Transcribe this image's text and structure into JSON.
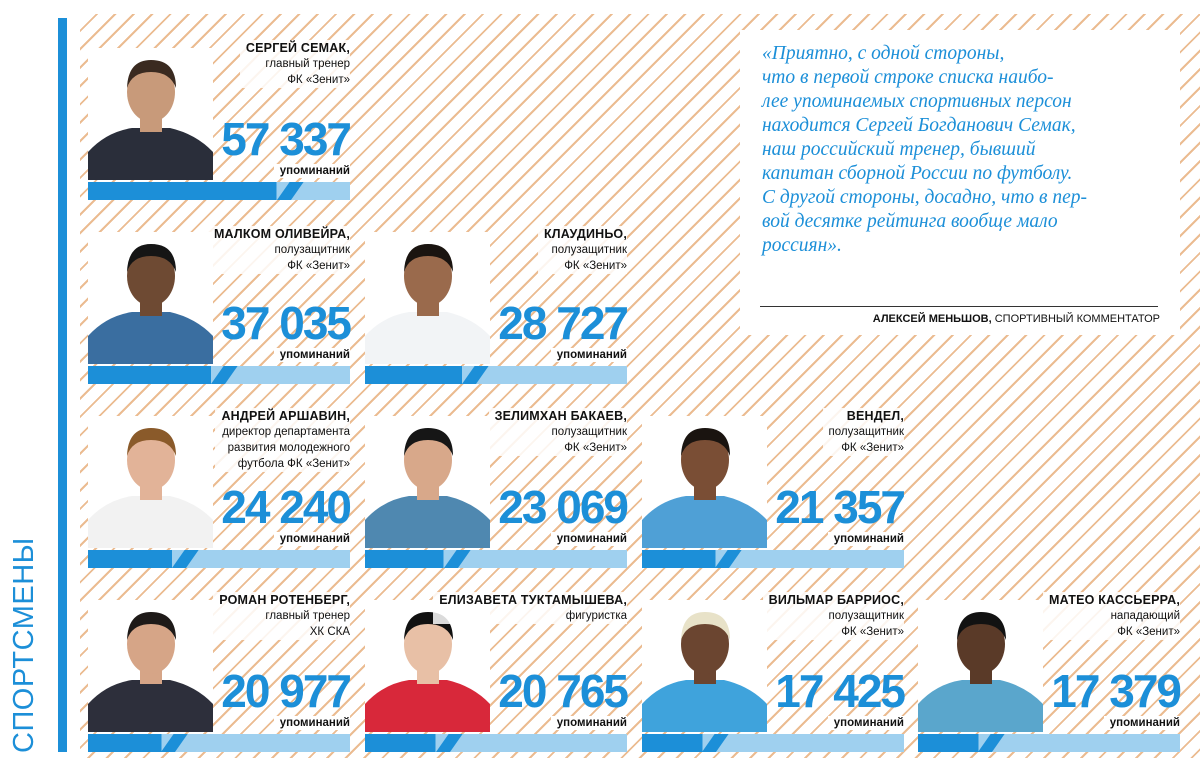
{
  "side_label": "СПОРТСМЕНЫ",
  "mentions_label": "упоминаний",
  "quote": {
    "text": "«Приятно, с одной стороны,\nчто в первой строке списка наибо-\nлее упоминаемых спортивных персон\nнаходится Сергей Богданович Семак,\nнаш российский тренер, бывший\nкапитан сборной России по футболу.\nС другой стороны, досадно, что в пер-\nвой десятке рейтинга вообще мало\nроссиян».",
    "author_name": "АЛЕКСЕЙ МЕНЬШОВ,",
    "author_role": "СПОРТИВНЫЙ КОММЕНТАТОР"
  },
  "colors": {
    "accent": "#1c8fd8",
    "accent_light": "#9fd0ef",
    "hatch": "#e9b485"
  },
  "people": [
    {
      "name": "СЕРГЕЙ СЕМАК,",
      "role_lines": [
        "главный тренер",
        "ФК «Зенит»"
      ],
      "mentions": "57 337",
      "value": 57337
    },
    {
      "name": "МАЛКОМ ОЛИВЕЙРА,",
      "role_lines": [
        "полузащитник",
        "ФК «Зенит»"
      ],
      "mentions": "37 035",
      "value": 37035
    },
    {
      "name": "КЛАУДИНЬО,",
      "role_lines": [
        "полузащитник",
        "ФК «Зенит»"
      ],
      "mentions": "28 727",
      "value": 28727
    },
    {
      "name": "АНДРЕЙ АРШАВИН,",
      "role_lines": [
        "директор департамента",
        "развития молодежного",
        "футбола ФК «Зенит»"
      ],
      "mentions": "24 240",
      "value": 24240
    },
    {
      "name": "ЗЕЛИМХАН БАКАЕВ,",
      "role_lines": [
        "полузащитник",
        "ФК «Зенит»"
      ],
      "mentions": "23 069",
      "value": 23069
    },
    {
      "name": "ВЕНДЕЛ,",
      "role_lines": [
        "полузащитник",
        "ФК «Зенит»"
      ],
      "mentions": "21 357",
      "value": 21357
    },
    {
      "name": "РОМАН РОТЕНБЕРГ,",
      "role_lines": [
        "главный тренер",
        "ХК СКА"
      ],
      "mentions": "20 977",
      "value": 20977
    },
    {
      "name": "ЕЛИЗАВЕТА ТУКТАМЫШЕВА,",
      "role_lines": [
        "фигуристка"
      ],
      "mentions": "20 765",
      "value": 20765
    },
    {
      "name": "ВИЛЬМАР БАРРИОС,",
      "role_lines": [
        "полузащитник",
        "ФК «Зенит»"
      ],
      "mentions": "17 425",
      "value": 17425
    },
    {
      "name": "МАТЕО КАССЬЕРРА,",
      "role_lines": [
        "нападающий",
        "ФК «Зенит»"
      ],
      "mentions": "17 379",
      "value": 17379
    }
  ]
}
